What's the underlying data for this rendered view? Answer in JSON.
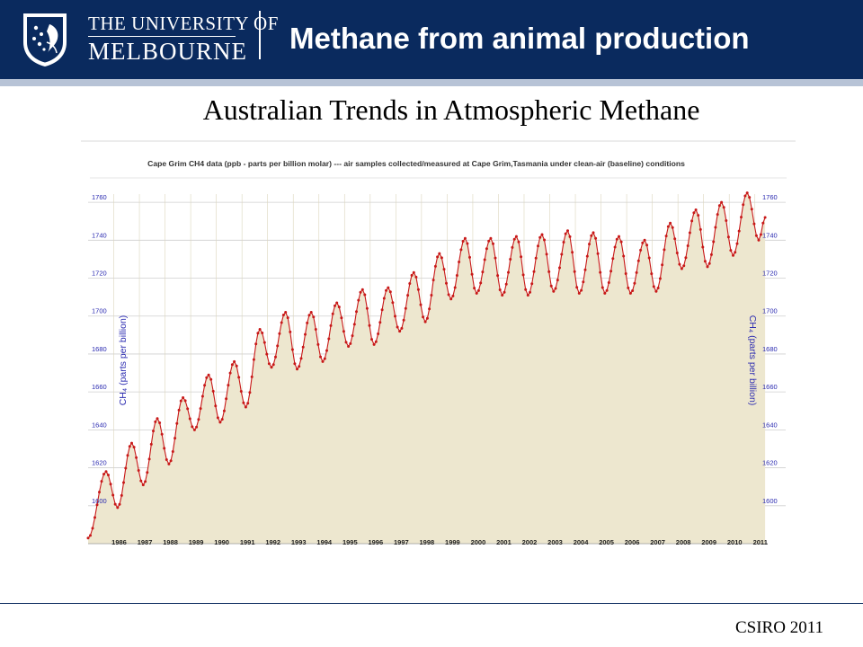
{
  "header": {
    "university_line1": "THE UNIVERSITY OF",
    "university_line2": "MELBOURNE",
    "title": "Methane from animal production"
  },
  "slide_title": "Australian Trends in Atmospheric Methane",
  "footer": {
    "source": "CSIRO 2011"
  },
  "colors": {
    "header_bg": "#0a2a5e",
    "series": "#c81818",
    "area_fill": "#ede7cf",
    "tick_label": "#2a2ab0"
  },
  "chart_data": {
    "type": "area",
    "title": "Cape Grim CH4 data (ppb - parts per billion molar) --- air samples collected/measured at Cape Grim,Tasmania under clean-air (baseline) conditions",
    "ylabel": "CH₄ (parts per billion)",
    "ylabel_right": "CH₄ (parts per billion)",
    "ylim": [
      1580,
      1770
    ],
    "xlim": [
      1985,
      2011.5
    ],
    "yticks": [
      1600,
      1620,
      1640,
      1660,
      1680,
      1700,
      1720,
      1740,
      1760
    ],
    "xticks": [
      1986,
      1987,
      1988,
      1989,
      1990,
      1991,
      1992,
      1993,
      1994,
      1995,
      1996,
      1997,
      1998,
      1999,
      2000,
      2001,
      2002,
      2003,
      2004,
      2005,
      2006,
      2007,
      2008,
      2009,
      2010,
      2011
    ],
    "grid": true,
    "legend": "none",
    "series": [
      {
        "seasonal_extremes": {
          "x": [
            1985.0,
            1985.7,
            1986.15,
            1986.7,
            1987.15,
            1987.7,
            1988.15,
            1988.7,
            1989.15,
            1989.7,
            1990.15,
            1990.7,
            1991.15,
            1991.7,
            1992.15,
            1992.7,
            1993.15,
            1993.7,
            1994.15,
            1994.7,
            1995.15,
            1995.7,
            1996.15,
            1996.7,
            1997.15,
            1997.7,
            1998.15,
            1998.7,
            1999.15,
            1999.7,
            2000.15,
            2000.7,
            2001.15,
            2001.7,
            2002.15,
            2002.7,
            2003.15,
            2003.7,
            2004.15,
            2004.7,
            2005.15,
            2005.7,
            2006.15,
            2006.7,
            2007.15,
            2007.7,
            2008.15,
            2008.7,
            2009.15,
            2009.7,
            2010.15,
            2010.7,
            2011.15,
            2011.4
          ],
          "y": [
            1583,
            1618,
            1599,
            1633,
            1611,
            1646,
            1622,
            1657,
            1640,
            1669,
            1644,
            1676,
            1652,
            1693,
            1673,
            1702,
            1672,
            1702,
            1676,
            1707,
            1684,
            1714,
            1685,
            1715,
            1692,
            1723,
            1697,
            1733,
            1709,
            1741,
            1712,
            1741,
            1711,
            1742,
            1711,
            1743,
            1713,
            1745,
            1712,
            1744,
            1712,
            1742,
            1712,
            1740,
            1713,
            1749,
            1725,
            1756,
            1726,
            1760,
            1732,
            1765,
            1740,
            1752
          ]
        }
      }
    ]
  }
}
